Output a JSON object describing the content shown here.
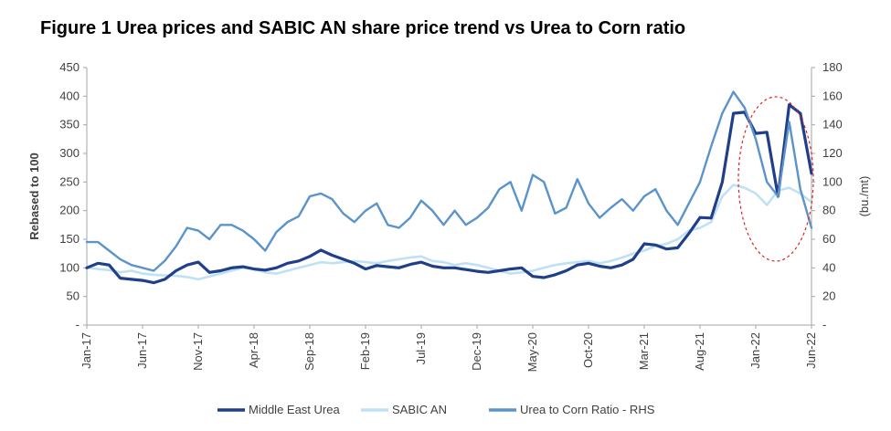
{
  "title": "Figure 1  Urea prices and SABIC AN share price trend vs Urea to Corn ratio",
  "colors": {
    "middle_east_urea": "#1f3f8a",
    "sabic_an": "#bfe1f4",
    "urea_corn_ratio": "#5b93cb",
    "highlight": "#e02020",
    "axis": "#a6a6a6"
  },
  "chart_data": {
    "type": "line",
    "title": "Figure 1  Urea prices and SABIC AN share price trend vs Urea to Corn ratio",
    "xlabel": "",
    "ylabel": "Rebased to 100",
    "y2label": "(bu./mt)",
    "x_range": [
      "2017-01",
      "2022-06"
    ],
    "x_tick_labels": [
      "Jan-17",
      "Jun-17",
      "Nov-17",
      "Apr-18",
      "Sep-18",
      "Feb-19",
      "Jul-19",
      "Dec-19",
      "May-20",
      "Oct-20",
      "Mar-21",
      "Aug-21",
      "Jan-22",
      "Jun-22"
    ],
    "ylim": [
      0,
      450
    ],
    "y_ticks": [
      "-",
      "50",
      "100",
      "150",
      "200",
      "250",
      "300",
      "350",
      "400",
      "450"
    ],
    "y2lim": [
      0,
      180
    ],
    "y2_ticks": [
      "-",
      "20",
      "40",
      "60",
      "80",
      "100",
      "120",
      "140",
      "160",
      "180"
    ],
    "grid": false,
    "legend_position": "bottom",
    "annotation": "dashed red ellipse around Jan-22 to Jun-22 peak",
    "series": [
      {
        "name": "Middle East Urea",
        "axis": "left",
        "points": [
          [
            "2017-01",
            100
          ],
          [
            "2017-02",
            108
          ],
          [
            "2017-03",
            105
          ],
          [
            "2017-04",
            82
          ],
          [
            "2017-05",
            80
          ],
          [
            "2017-06",
            78
          ],
          [
            "2017-07",
            74
          ],
          [
            "2017-08",
            80
          ],
          [
            "2017-09",
            95
          ],
          [
            "2017-10",
            105
          ],
          [
            "2017-11",
            110
          ],
          [
            "2017-12",
            92
          ],
          [
            "2018-01",
            95
          ],
          [
            "2018-02",
            100
          ],
          [
            "2018-03",
            102
          ],
          [
            "2018-04",
            98
          ],
          [
            "2018-05",
            96
          ],
          [
            "2018-06",
            100
          ],
          [
            "2018-07",
            108
          ],
          [
            "2018-08",
            112
          ],
          [
            "2018-09",
            120
          ],
          [
            "2018-10",
            131
          ],
          [
            "2018-11",
            122
          ],
          [
            "2018-12",
            115
          ],
          [
            "2019-01",
            108
          ],
          [
            "2019-02",
            98
          ],
          [
            "2019-03",
            104
          ],
          [
            "2019-04",
            102
          ],
          [
            "2019-05",
            100
          ],
          [
            "2019-06",
            106
          ],
          [
            "2019-07",
            110
          ],
          [
            "2019-08",
            103
          ],
          [
            "2019-09",
            100
          ],
          [
            "2019-10",
            100
          ],
          [
            "2019-11",
            97
          ],
          [
            "2019-12",
            94
          ],
          [
            "2020-01",
            92
          ],
          [
            "2020-02",
            95
          ],
          [
            "2020-03",
            98
          ],
          [
            "2020-04",
            100
          ],
          [
            "2020-05",
            85
          ],
          [
            "2020-06",
            83
          ],
          [
            "2020-07",
            88
          ],
          [
            "2020-08",
            95
          ],
          [
            "2020-09",
            105
          ],
          [
            "2020-10",
            108
          ],
          [
            "2020-11",
            103
          ],
          [
            "2020-12",
            100
          ],
          [
            "2021-01",
            105
          ],
          [
            "2021-02",
            115
          ],
          [
            "2021-03",
            142
          ],
          [
            "2021-04",
            140
          ],
          [
            "2021-05",
            133
          ],
          [
            "2021-06",
            135
          ],
          [
            "2021-07",
            160
          ],
          [
            "2021-08",
            188
          ],
          [
            "2021-09",
            187
          ],
          [
            "2021-10",
            250
          ],
          [
            "2021-11",
            370
          ],
          [
            "2021-12",
            372
          ],
          [
            "2022-01",
            335
          ],
          [
            "2022-02",
            337
          ],
          [
            "2022-03",
            225
          ],
          [
            "2022-04",
            385
          ],
          [
            "2022-05",
            370
          ],
          [
            "2022-06",
            265
          ]
        ]
      },
      {
        "name": "SABIC AN",
        "axis": "left",
        "points": [
          [
            "2017-01",
            100
          ],
          [
            "2017-02",
            98
          ],
          [
            "2017-03",
            96
          ],
          [
            "2017-04",
            92
          ],
          [
            "2017-05",
            95
          ],
          [
            "2017-06",
            90
          ],
          [
            "2017-07",
            88
          ],
          [
            "2017-08",
            87
          ],
          [
            "2017-09",
            86
          ],
          [
            "2017-10",
            84
          ],
          [
            "2017-11",
            80
          ],
          [
            "2017-12",
            85
          ],
          [
            "2018-01",
            90
          ],
          [
            "2018-02",
            95
          ],
          [
            "2018-03",
            100
          ],
          [
            "2018-04",
            98
          ],
          [
            "2018-05",
            92
          ],
          [
            "2018-06",
            90
          ],
          [
            "2018-07",
            95
          ],
          [
            "2018-08",
            100
          ],
          [
            "2018-09",
            105
          ],
          [
            "2018-10",
            110
          ],
          [
            "2018-11",
            108
          ],
          [
            "2018-12",
            110
          ],
          [
            "2019-01",
            112
          ],
          [
            "2019-02",
            110
          ],
          [
            "2019-03",
            108
          ],
          [
            "2019-04",
            112
          ],
          [
            "2019-05",
            115
          ],
          [
            "2019-06",
            118
          ],
          [
            "2019-07",
            120
          ],
          [
            "2019-08",
            112
          ],
          [
            "2019-09",
            110
          ],
          [
            "2019-10",
            105
          ],
          [
            "2019-11",
            108
          ],
          [
            "2019-12",
            105
          ],
          [
            "2020-01",
            100
          ],
          [
            "2020-02",
            95
          ],
          [
            "2020-03",
            90
          ],
          [
            "2020-04",
            92
          ],
          [
            "2020-05",
            95
          ],
          [
            "2020-06",
            100
          ],
          [
            "2020-07",
            105
          ],
          [
            "2020-08",
            108
          ],
          [
            "2020-09",
            110
          ],
          [
            "2020-10",
            112
          ],
          [
            "2020-11",
            108
          ],
          [
            "2020-12",
            112
          ],
          [
            "2021-01",
            118
          ],
          [
            "2021-02",
            125
          ],
          [
            "2021-03",
            130
          ],
          [
            "2021-04",
            138
          ],
          [
            "2021-05",
            142
          ],
          [
            "2021-06",
            150
          ],
          [
            "2021-07",
            165
          ],
          [
            "2021-08",
            170
          ],
          [
            "2021-09",
            180
          ],
          [
            "2021-10",
            225
          ],
          [
            "2021-11",
            245
          ],
          [
            "2021-12",
            240
          ],
          [
            "2022-01",
            230
          ],
          [
            "2022-02",
            210
          ],
          [
            "2022-03",
            235
          ],
          [
            "2022-04",
            240
          ],
          [
            "2022-05",
            230
          ],
          [
            "2022-06",
            215
          ]
        ]
      },
      {
        "name": "Urea to Corn Ratio - RHS",
        "axis": "right",
        "points": [
          [
            "2017-01",
            58
          ],
          [
            "2017-02",
            58
          ],
          [
            "2017-03",
            52
          ],
          [
            "2017-04",
            46
          ],
          [
            "2017-05",
            42
          ],
          [
            "2017-06",
            40
          ],
          [
            "2017-07",
            38
          ],
          [
            "2017-08",
            45
          ],
          [
            "2017-09",
            55
          ],
          [
            "2017-10",
            68
          ],
          [
            "2017-11",
            66
          ],
          [
            "2017-12",
            60
          ],
          [
            "2018-01",
            70
          ],
          [
            "2018-02",
            70
          ],
          [
            "2018-03",
            66
          ],
          [
            "2018-04",
            60
          ],
          [
            "2018-05",
            52
          ],
          [
            "2018-06",
            65
          ],
          [
            "2018-07",
            72
          ],
          [
            "2018-08",
            76
          ],
          [
            "2018-09",
            90
          ],
          [
            "2018-10",
            92
          ],
          [
            "2018-11",
            88
          ],
          [
            "2018-12",
            78
          ],
          [
            "2019-01",
            72
          ],
          [
            "2019-02",
            80
          ],
          [
            "2019-03",
            85
          ],
          [
            "2019-04",
            70
          ],
          [
            "2019-05",
            68
          ],
          [
            "2019-06",
            75
          ],
          [
            "2019-07",
            87
          ],
          [
            "2019-08",
            80
          ],
          [
            "2019-09",
            70
          ],
          [
            "2019-10",
            80
          ],
          [
            "2019-11",
            70
          ],
          [
            "2019-12",
            75
          ],
          [
            "2020-01",
            82
          ],
          [
            "2020-02",
            95
          ],
          [
            "2020-03",
            100
          ],
          [
            "2020-04",
            80
          ],
          [
            "2020-05",
            105
          ],
          [
            "2020-06",
            100
          ],
          [
            "2020-07",
            78
          ],
          [
            "2020-08",
            82
          ],
          [
            "2020-09",
            102
          ],
          [
            "2020-10",
            85
          ],
          [
            "2020-11",
            75
          ],
          [
            "2020-12",
            82
          ],
          [
            "2021-01",
            88
          ],
          [
            "2021-02",
            80
          ],
          [
            "2021-03",
            90
          ],
          [
            "2021-04",
            95
          ],
          [
            "2021-05",
            80
          ],
          [
            "2021-06",
            70
          ],
          [
            "2021-07",
            85
          ],
          [
            "2021-08",
            100
          ],
          [
            "2021-09",
            125
          ],
          [
            "2021-10",
            148
          ],
          [
            "2021-11",
            163
          ],
          [
            "2021-12",
            152
          ],
          [
            "2022-01",
            130
          ],
          [
            "2022-02",
            100
          ],
          [
            "2022-03",
            90
          ],
          [
            "2022-04",
            142
          ],
          [
            "2022-05",
            95
          ],
          [
            "2022-06",
            68
          ]
        ]
      }
    ]
  }
}
